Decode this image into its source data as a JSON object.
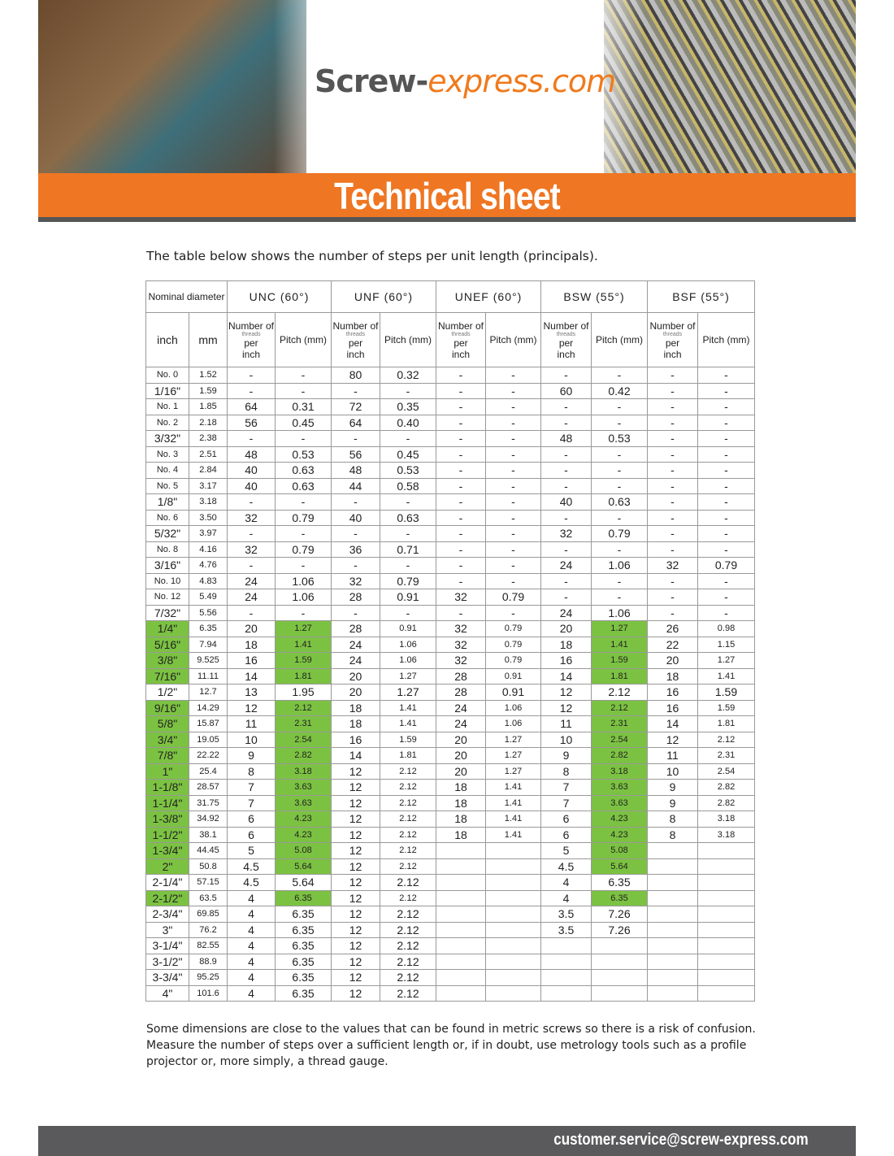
{
  "header": {
    "logo_main": "Screw-",
    "logo_accent": "express.com",
    "banner_title": "Technical sheet"
  },
  "intro": "The table below shows the number of steps per unit length (principals).",
  "table": {
    "nominal_label": "Nominal diameter",
    "groups": [
      "UNC (60°)",
      "UNF (60°)",
      "UNEF (60°)",
      "BSW (55°)",
      "BSF (55°)"
    ],
    "inch_label": "inch",
    "mm_label": "mm",
    "count_label_top": "Number of",
    "count_label_small": "threads",
    "count_label_per": "per",
    "count_label_bottom": "inch",
    "pitch_label": "Pitch (mm)",
    "highlight_color": "#7cc242",
    "rows": [
      {
        "c": [
          "No. 0",
          "1.52",
          "-",
          "-",
          "80",
          "0.32",
          "-",
          "-",
          "-",
          "-",
          "-",
          "-"
        ]
      },
      {
        "c": [
          "1/16\"",
          "1.59",
          "-",
          "-",
          "-",
          "-",
          "-",
          "-",
          "60",
          "0.42",
          "-",
          "-"
        ]
      },
      {
        "c": [
          "No. 1",
          "1.85",
          "64",
          "0.31",
          "72",
          "0.35",
          "-",
          "-",
          "-",
          "-",
          "-",
          "-"
        ]
      },
      {
        "c": [
          "No. 2",
          "2.18",
          "56",
          "0.45",
          "64",
          "0.40",
          "-",
          "-",
          "-",
          "-",
          "-",
          "-"
        ]
      },
      {
        "c": [
          "3/32\"",
          "2.38",
          "-",
          "-",
          "-",
          "-",
          "-",
          "-",
          "48",
          "0.53",
          "-",
          "-"
        ]
      },
      {
        "c": [
          "No. 3",
          "2.51",
          "48",
          "0.53",
          "56",
          "0.45",
          "-",
          "-",
          "-",
          "-",
          "-",
          "-"
        ]
      },
      {
        "c": [
          "No. 4",
          "2.84",
          "40",
          "0.63",
          "48",
          "0.53",
          "-",
          "-",
          "-",
          "-",
          "-",
          "-"
        ]
      },
      {
        "c": [
          "No. 5",
          "3.17",
          "40",
          "0.63",
          "44",
          "0.58",
          "-",
          "-",
          "-",
          "-",
          "-",
          "-"
        ]
      },
      {
        "c": [
          "1/8\"",
          "3.18",
          "-",
          "-",
          "-",
          "-",
          "-",
          "-",
          "40",
          "0.63",
          "-",
          "-"
        ]
      },
      {
        "c": [
          "No. 6",
          "3.50",
          "32",
          "0.79",
          "40",
          "0.63",
          "-",
          "-",
          "-",
          "-",
          "-",
          "-"
        ]
      },
      {
        "c": [
          "5/32\"",
          "3.97",
          "-",
          "-",
          "-",
          "-",
          "-",
          "-",
          "32",
          "0.79",
          "-",
          "-"
        ]
      },
      {
        "c": [
          "No. 8",
          "4.16",
          "32",
          "0.79",
          "36",
          "0.71",
          "-",
          "-",
          "-",
          "-",
          "-",
          "-"
        ]
      },
      {
        "c": [
          "3/16\"",
          "4.76",
          "-",
          "-",
          "-",
          "-",
          "-",
          "-",
          "24",
          "1.06",
          "32",
          "0.79"
        ]
      },
      {
        "c": [
          "No. 10",
          "4.83",
          "24",
          "1.06",
          "32",
          "0.79",
          "-",
          "-",
          "-",
          "-",
          "-",
          "-"
        ]
      },
      {
        "c": [
          "No. 12",
          "5.49",
          "24",
          "1.06",
          "28",
          "0.91",
          "32",
          "0.79",
          "-",
          "-",
          "-",
          "-"
        ]
      },
      {
        "c": [
          "7/32\"",
          "5.56",
          "-",
          "-",
          "-",
          "-",
          "-",
          "-",
          "24",
          "1.06",
          "-",
          "-"
        ]
      },
      {
        "c": [
          "1/4\"",
          "6.35",
          "20",
          "1.27",
          "28",
          "0.91",
          "32",
          "0.79",
          "20",
          "1.27",
          "26",
          "0.98"
        ],
        "hl": true
      },
      {
        "c": [
          "5/16\"",
          "7.94",
          "18",
          "1.41",
          "24",
          "1.06",
          "32",
          "0.79",
          "18",
          "1.41",
          "22",
          "1.15"
        ],
        "hl": true
      },
      {
        "c": [
          "3/8\"",
          "9.525",
          "16",
          "1.59",
          "24",
          "1.06",
          "32",
          "0.79",
          "16",
          "1.59",
          "20",
          "1.27"
        ],
        "hl": true
      },
      {
        "c": [
          "7/16\"",
          "11.11",
          "14",
          "1.81",
          "20",
          "1.27",
          "28",
          "0.91",
          "14",
          "1.81",
          "18",
          "1.41"
        ],
        "hl": true
      },
      {
        "c": [
          "1/2\"",
          "12.7",
          "13",
          "1.95",
          "20",
          "1.27",
          "28",
          "0.91",
          "12",
          "2.12",
          "16",
          "1.59"
        ]
      },
      {
        "c": [
          "9/16\"",
          "14.29",
          "12",
          "2.12",
          "18",
          "1.41",
          "24",
          "1.06",
          "12",
          "2.12",
          "16",
          "1.59"
        ],
        "hl": true
      },
      {
        "c": [
          "5/8\"",
          "15.87",
          "11",
          "2.31",
          "18",
          "1.41",
          "24",
          "1.06",
          "11",
          "2.31",
          "14",
          "1.81"
        ],
        "hl": true
      },
      {
        "c": [
          "3/4\"",
          "19.05",
          "10",
          "2.54",
          "16",
          "1.59",
          "20",
          "1.27",
          "10",
          "2.54",
          "12",
          "2.12"
        ],
        "hl": true
      },
      {
        "c": [
          "7/8\"",
          "22.22",
          "9",
          "2.82",
          "14",
          "1.81",
          "20",
          "1.27",
          "9",
          "2.82",
          "11",
          "2.31"
        ],
        "hl": true
      },
      {
        "c": [
          "1\"",
          "25.4",
          "8",
          "3.18",
          "12",
          "2.12",
          "20",
          "1.27",
          "8",
          "3.18",
          "10",
          "2.54"
        ],
        "hl": true
      },
      {
        "c": [
          "1-1/8\"",
          "28.57",
          "7",
          "3.63",
          "12",
          "2.12",
          "18",
          "1.41",
          "7",
          "3.63",
          "9",
          "2.82"
        ],
        "hl": true
      },
      {
        "c": [
          "1-1/4\"",
          "31.75",
          "7",
          "3.63",
          "12",
          "2.12",
          "18",
          "1.41",
          "7",
          "3.63",
          "9",
          "2.82"
        ],
        "hl": true
      },
      {
        "c": [
          "1-3/8\"",
          "34.92",
          "6",
          "4.23",
          "12",
          "2.12",
          "18",
          "1.41",
          "6",
          "4.23",
          "8",
          "3.18"
        ],
        "hl": true
      },
      {
        "c": [
          "1-1/2\"",
          "38.1",
          "6",
          "4.23",
          "12",
          "2.12",
          "18",
          "1.41",
          "6",
          "4.23",
          "8",
          "3.18"
        ],
        "hl": true
      },
      {
        "c": [
          "1-3/4\"",
          "44.45",
          "5",
          "5.08",
          "12",
          "2.12",
          "",
          "",
          "5",
          "5.08",
          "",
          ""
        ],
        "hl": true
      },
      {
        "c": [
          "2\"",
          "50.8",
          "4.5",
          "5.64",
          "12",
          "2.12",
          "",
          "",
          "4.5",
          "5.64",
          "",
          ""
        ],
        "hl": true
      },
      {
        "c": [
          "2-1/4\"",
          "57.15",
          "4.5",
          "5.64",
          "12",
          "2.12",
          "",
          "",
          "4",
          "6.35",
          "",
          ""
        ]
      },
      {
        "c": [
          "2-1/2\"",
          "63.5",
          "4",
          "6.35",
          "12",
          "2.12",
          "",
          "",
          "4",
          "6.35",
          "",
          ""
        ],
        "hl": true
      },
      {
        "c": [
          "2-3/4\"",
          "69.85",
          "4",
          "6.35",
          "12",
          "2.12",
          "",
          "",
          "3.5",
          "7.26",
          "",
          ""
        ]
      },
      {
        "c": [
          "3\"",
          "76.2",
          "4",
          "6.35",
          "12",
          "2.12",
          "",
          "",
          "3.5",
          "7.26",
          "",
          ""
        ]
      },
      {
        "c": [
          "3-1/4\"",
          "82.55",
          "4",
          "6.35",
          "12",
          "2.12",
          "",
          "",
          "",
          "",
          "",
          ""
        ]
      },
      {
        "c": [
          "3-1/2\"",
          "88.9",
          "4",
          "6.35",
          "12",
          "2.12",
          "",
          "",
          "",
          "",
          "",
          ""
        ]
      },
      {
        "c": [
          "3-3/4\"",
          "95.25",
          "4",
          "6.35",
          "12",
          "2.12",
          "",
          "",
          "",
          "",
          "",
          ""
        ]
      },
      {
        "c": [
          "4\"",
          "101.6",
          "4",
          "6.35",
          "12",
          "2.12",
          "",
          "",
          "",
          "",
          "",
          ""
        ]
      }
    ]
  },
  "outro": "Some dimensions are close to the values that can be found in metric screws so there is a risk of confusion. Measure the number of steps over a sufficient length or, if in doubt, use metrology tools such as a profile projector or, more simply, a thread gauge.",
  "footer": {
    "email": "customer.service@screw-express.com"
  }
}
